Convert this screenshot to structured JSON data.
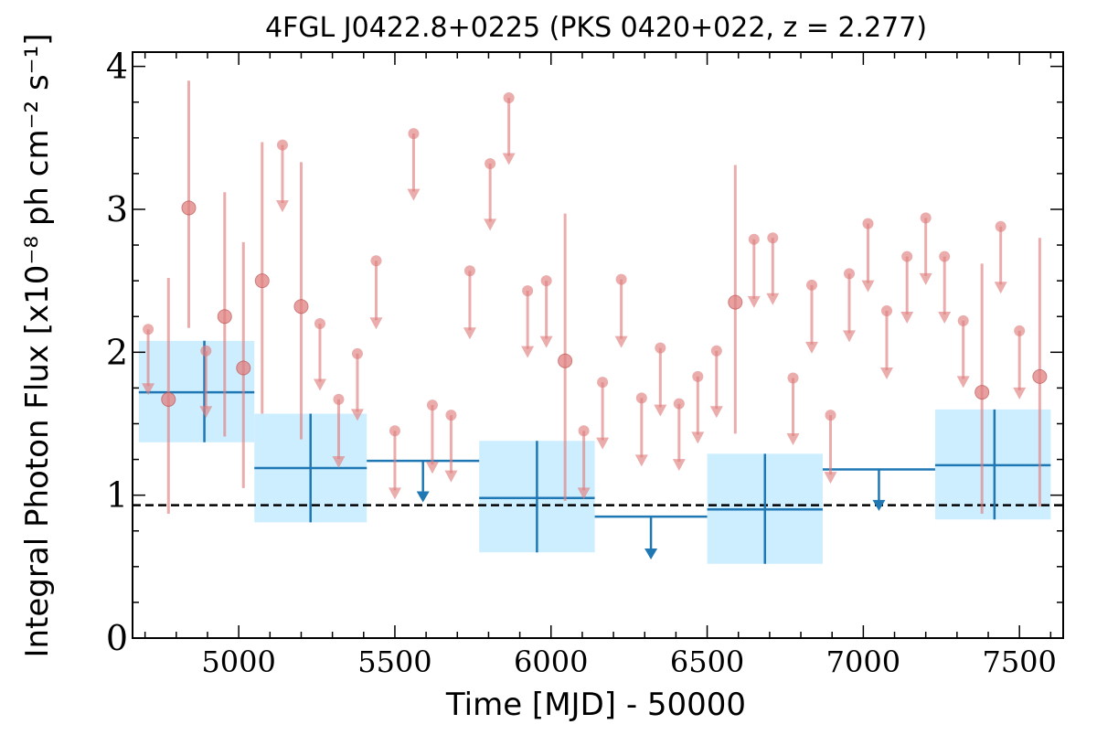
{
  "chart_data": {
    "type": "scatter",
    "title": "4FGL J0422.8+0225 (PKS 0420+022, z = 2.277)",
    "xlabel": "Time [MJD] - 50000",
    "ylabel": "Integral Photon Flux [x10⁻⁸ ph cm⁻² s⁻¹]",
    "xlim": [
      4660,
      7640
    ],
    "ylim": [
      0,
      4.1
    ],
    "x_ticks": [
      5000,
      5500,
      6000,
      6500,
      7000,
      7500
    ],
    "y_ticks": [
      0,
      1,
      2,
      3,
      4
    ],
    "reference_line": {
      "y": 0.93,
      "style": "dashed",
      "color": "#000000"
    },
    "colors": {
      "points": "#e08080",
      "bins": "#1f77b4",
      "bin_box": "#cdeeff"
    },
    "series": [
      {
        "type": "points",
        "values": [
          {
            "x": 4710,
            "y": 2.16,
            "upper_limit": true,
            "to": 1.7
          },
          {
            "x": 4775,
            "y": 1.67,
            "err": [
              0.87,
              2.52
            ]
          },
          {
            "x": 4840,
            "y": 3.01,
            "err": [
              2.17,
              3.9
            ]
          },
          {
            "x": 4895,
            "y": 2.01,
            "upper_limit": true,
            "to": 1.54
          },
          {
            "x": 4955,
            "y": 2.25,
            "err": [
              1.41,
              3.12
            ]
          },
          {
            "x": 5015,
            "y": 1.89,
            "err": [
              1.05,
              2.77
            ]
          },
          {
            "x": 5075,
            "y": 2.5,
            "err": [
              1.57,
              3.47
            ]
          },
          {
            "x": 5140,
            "y": 3.45,
            "upper_limit": true,
            "to": 2.98
          },
          {
            "x": 5200,
            "y": 2.32,
            "err": [
              1.39,
              3.33
            ]
          },
          {
            "x": 5260,
            "y": 2.2,
            "upper_limit": true,
            "to": 1.73
          },
          {
            "x": 5320,
            "y": 1.67,
            "upper_limit": true,
            "to": 1.19
          },
          {
            "x": 5380,
            "y": 1.99,
            "upper_limit": true,
            "to": 1.52
          },
          {
            "x": 5440,
            "y": 2.64,
            "upper_limit": true,
            "to": 2.16
          },
          {
            "x": 5500,
            "y": 1.45,
            "upper_limit": true,
            "to": 0.97
          },
          {
            "x": 5560,
            "y": 3.53,
            "upper_limit": true,
            "to": 3.06
          },
          {
            "x": 5620,
            "y": 1.63,
            "upper_limit": true,
            "to": 1.15
          },
          {
            "x": 5680,
            "y": 1.56,
            "upper_limit": true,
            "to": 1.09
          },
          {
            "x": 5740,
            "y": 2.57,
            "upper_limit": true,
            "to": 2.09
          },
          {
            "x": 5805,
            "y": 3.32,
            "upper_limit": true,
            "to": 2.85
          },
          {
            "x": 5865,
            "y": 3.78,
            "upper_limit": true,
            "to": 3.31
          },
          {
            "x": 5925,
            "y": 2.43,
            "upper_limit": true,
            "to": 1.96
          },
          {
            "x": 5985,
            "y": 2.5,
            "upper_limit": true,
            "to": 2.03
          },
          {
            "x": 6045,
            "y": 1.94,
            "err": [
              0.96,
              2.97
            ]
          },
          {
            "x": 6105,
            "y": 1.45,
            "upper_limit": true,
            "to": 0.97
          },
          {
            "x": 6165,
            "y": 1.79,
            "upper_limit": true,
            "to": 1.32
          },
          {
            "x": 6225,
            "y": 2.51,
            "upper_limit": true,
            "to": 2.03
          },
          {
            "x": 6290,
            "y": 1.68,
            "upper_limit": true,
            "to": 1.2
          },
          {
            "x": 6350,
            "y": 2.03,
            "upper_limit": true,
            "to": 1.55
          },
          {
            "x": 6410,
            "y": 1.64,
            "upper_limit": true,
            "to": 1.17
          },
          {
            "x": 6470,
            "y": 1.83,
            "upper_limit": true,
            "to": 1.36
          },
          {
            "x": 6530,
            "y": 2.01,
            "upper_limit": true,
            "to": 1.54
          },
          {
            "x": 6590,
            "y": 2.35,
            "err": [
              1.43,
              3.31
            ]
          },
          {
            "x": 6650,
            "y": 2.79,
            "upper_limit": true,
            "to": 2.31
          },
          {
            "x": 6710,
            "y": 2.8,
            "upper_limit": true,
            "to": 2.33
          },
          {
            "x": 6775,
            "y": 1.82,
            "upper_limit": true,
            "to": 1.35
          },
          {
            "x": 6835,
            "y": 2.47,
            "upper_limit": true,
            "to": 1.99
          },
          {
            "x": 6895,
            "y": 1.56,
            "upper_limit": true,
            "to": 1.08
          },
          {
            "x": 6955,
            "y": 2.55,
            "upper_limit": true,
            "to": 2.07
          },
          {
            "x": 7015,
            "y": 2.9,
            "upper_limit": true,
            "to": 2.42
          },
          {
            "x": 7075,
            "y": 2.29,
            "upper_limit": true,
            "to": 1.81
          },
          {
            "x": 7140,
            "y": 2.67,
            "upper_limit": true,
            "to": 2.2
          },
          {
            "x": 7200,
            "y": 2.94,
            "upper_limit": true,
            "to": 2.47
          },
          {
            "x": 7260,
            "y": 2.67,
            "upper_limit": true,
            "to": 2.2
          },
          {
            "x": 7320,
            "y": 2.22,
            "upper_limit": true,
            "to": 1.75
          },
          {
            "x": 7380,
            "y": 1.72,
            "err": [
              0.87,
              2.62
            ]
          },
          {
            "x": 7440,
            "y": 2.88,
            "upper_limit": true,
            "to": 2.41
          },
          {
            "x": 7500,
            "y": 2.15,
            "upper_limit": true,
            "to": 1.67
          },
          {
            "x": 7565,
            "y": 1.83,
            "err": [
              0.92,
              2.8
            ]
          }
        ]
      },
      {
        "type": "bins",
        "values": [
          {
            "x0": 4680,
            "x1": 5050,
            "xc": 4890,
            "y": 1.72,
            "err": [
              1.37,
              2.08
            ]
          },
          {
            "x0": 5050,
            "x1": 5410,
            "xc": 5230,
            "y": 1.19,
            "err": [
              0.81,
              1.57
            ]
          },
          {
            "x0": 5410,
            "x1": 5770,
            "xc": 5590,
            "y": 1.24,
            "upper_limit": true,
            "to": 0.95
          },
          {
            "x0": 5770,
            "x1": 6140,
            "xc": 5955,
            "y": 0.98,
            "err": [
              0.6,
              1.38
            ]
          },
          {
            "x0": 6140,
            "x1": 6500,
            "xc": 6320,
            "y": 0.85,
            "upper_limit": true,
            "to": 0.55
          },
          {
            "x0": 6500,
            "x1": 6870,
            "xc": 6685,
            "y": 0.9,
            "err": [
              0.52,
              1.29
            ]
          },
          {
            "x0": 6870,
            "x1": 7230,
            "xc": 7050,
            "y": 1.18,
            "upper_limit": true,
            "to": 0.89
          },
          {
            "x0": 7230,
            "x1": 7600,
            "xc": 7420,
            "y": 1.21,
            "err": [
              0.83,
              1.6
            ]
          }
        ]
      }
    ]
  }
}
